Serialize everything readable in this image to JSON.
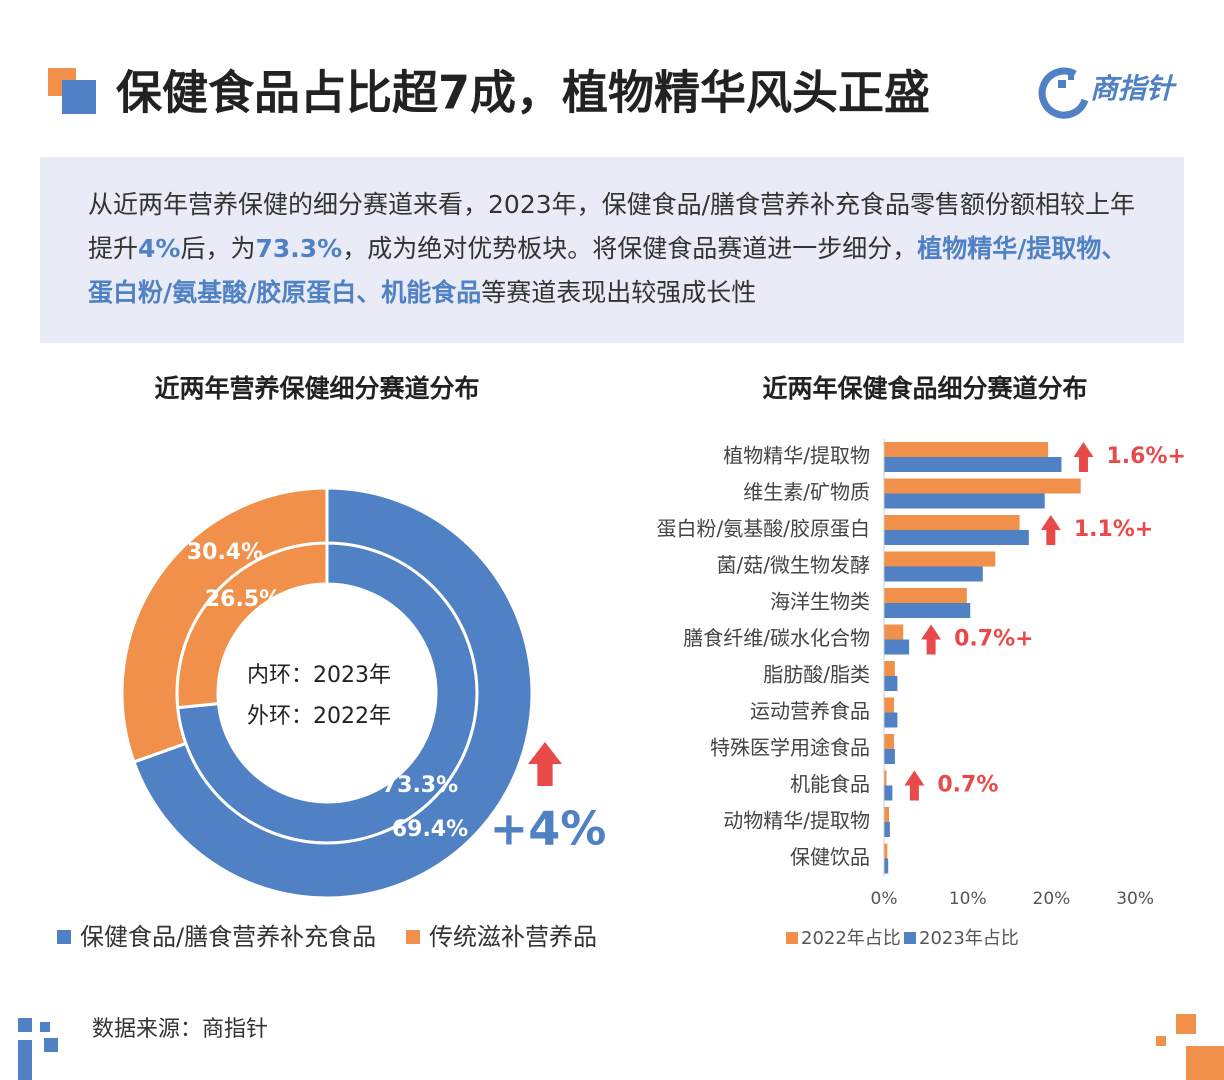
{
  "header": {
    "title": "保健食品占比超7成，植物精华风头正盛",
    "logo": "商指针"
  },
  "intro": [
    {
      "text": "从近两年营养保健的细分赛道来看，2023年，保健食品/膳食营养补充食品零售额份额相较上年提升",
      "highlight": false
    },
    {
      "text": "4%",
      "highlight": true
    },
    {
      "text": "后，为",
      "highlight": false
    },
    {
      "text": "73.3%",
      "highlight": true
    },
    {
      "text": "，成为绝对优势板块。将保健食品赛道进一步细分，",
      "highlight": false
    },
    {
      "text": "植物精华/提取物、蛋白粉/氨基酸/胶原蛋白、机能食品",
      "highlight": true
    },
    {
      "text": "等赛道表现出较强成长性",
      "highlight": false
    }
  ],
  "chart_data": [
    {
      "type": "donut",
      "title": "近两年营养保健细分赛道分布",
      "categories": [
        "保健食品/膳食营养补充食品",
        "传统滋补营养品"
      ],
      "colors": [
        "#4f81c4",
        "#f0904a"
      ],
      "center_labels": [
        "内环：2023年",
        "外环：2022年"
      ],
      "series": [
        {
          "values": [
            73.3,
            26.5
          ],
          "value_labels": [
            "73.3%",
            "26.5%"
          ]
        },
        {
          "values": [
            69.4,
            30.4
          ],
          "value_labels": [
            "69.4%",
            "30.4%"
          ]
        }
      ],
      "annotation": "+4%"
    },
    {
      "type": "hbar",
      "title": "近两年保健食品细分赛道分布",
      "categories": [
        "植物精华/提取物",
        "维生素/矿物质",
        "蛋白粉/氨基酸/胶原蛋白",
        "菌/菇/微生物发酵",
        "海洋生物类",
        "膳食纤维/碳水化合物",
        "脂肪酸/脂类",
        "运动营养食品",
        "特殊医学用途食品",
        "机能食品",
        "动物精华/提取物",
        "保健饮品"
      ],
      "series": [
        {
          "name": "2022年占比",
          "color": "#f0904a",
          "values": [
            19.6,
            23.5,
            16.2,
            13.3,
            9.9,
            2.3,
            1.3,
            1.2,
            1.2,
            0.3,
            0.6,
            0.4
          ]
        },
        {
          "name": "2023年占比",
          "color": "#4f81c4",
          "values": [
            21.2,
            19.2,
            17.3,
            11.8,
            10.3,
            3.0,
            1.6,
            1.6,
            1.3,
            1.0,
            0.7,
            0.5
          ]
        }
      ],
      "xlim": [
        0,
        35
      ],
      "xticks": [
        {
          "value": 0,
          "label": "0%"
        },
        {
          "value": 10,
          "label": "10%"
        },
        {
          "value": 20,
          "label": "20%"
        },
        {
          "value": 30,
          "label": "30%"
        }
      ],
      "annotations": [
        {
          "text": "1.6%+",
          "category": "植物精华/提取物"
        },
        {
          "text": "1.1%+",
          "category": "蛋白粉/氨基酸/胶原蛋白"
        },
        {
          "text": "0.7%+",
          "category": "膳食纤维/碳水化合物"
        },
        {
          "text": "0.7%",
          "category": "机能食品"
        }
      ]
    }
  ],
  "source": "数据来源：商指针"
}
